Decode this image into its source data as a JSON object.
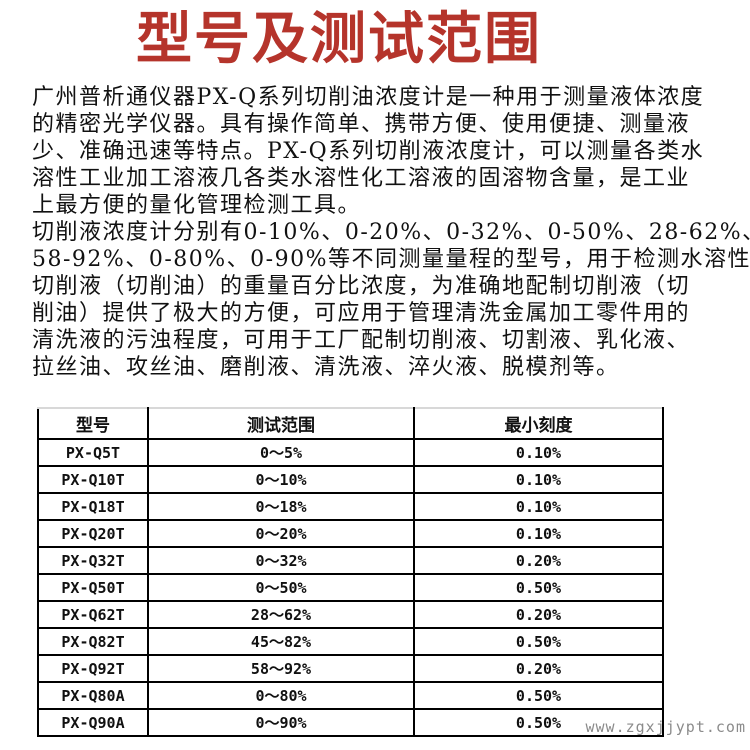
{
  "page": {
    "title": "型号及测试范围",
    "watermark": "www.zgxjjypt.com",
    "colors": {
      "title_red": "#b5342b",
      "body_text": "#111111",
      "table_border": "#000000",
      "table_top_border": "#d8d8d8",
      "watermark_gray": "#8b8b8b"
    }
  },
  "intro": {
    "paragraphs": [
      {
        "lines": [
          "广州普析通仪器PX-Q系列切削油浓度计是一种用于测量液体浓度",
          "的精密光学仪器。具有操作简单、携带方便、使用便捷、测量液",
          "少、准确迅速等特点。PX-Q系列切削液浓度计，可以测量各类水",
          "溶性工业加工溶液几各类水溶性化工溶液的固溶物含量，是工业",
          "上最方便的量化管理检测工具。"
        ]
      },
      {
        "lines": [
          "切削液浓度计分别有0-10%、0-20%、0-32%、0-50%、28-62%、",
          "58-92%、0-80%、0-90%等不同测量量程的型号，用于检测水溶性",
          "切削液（切削油）的重量百分比浓度，为准确地配制切削液（切",
          "削油）提供了极大的方便，可应用于管理清洗金属加工零件用的",
          "清洗液的污浊程度，可用于工厂配制切削液、切割液、乳化液、",
          "拉丝油、攻丝油、磨削液、清洗液、淬火液、脱模剂等。"
        ]
      }
    ]
  },
  "table": {
    "headers": [
      "型号",
      "测试范围",
      "最小刻度"
    ],
    "rows": [
      [
        "PX-Q5T",
        "0～5%",
        "0.10%"
      ],
      [
        "PX-Q10T",
        "0～10%",
        "0.10%"
      ],
      [
        "PX-Q18T",
        "0～18%",
        "0.10%"
      ],
      [
        "PX-Q20T",
        "0～20%",
        "0.10%"
      ],
      [
        "PX-Q32T",
        "0～32%",
        "0.20%"
      ],
      [
        "PX-Q50T",
        "0～50%",
        "0.50%"
      ],
      [
        "PX-Q62T",
        "28～62%",
        "0.20%"
      ],
      [
        "PX-Q82T",
        "45～82%",
        "0.50%"
      ],
      [
        "PX-Q92T",
        "58～92%",
        "0.20%"
      ],
      [
        "PX-Q80A",
        "0～80%",
        "0.50%"
      ],
      [
        "PX-Q90A",
        "0～90%",
        "0.50%"
      ]
    ]
  }
}
